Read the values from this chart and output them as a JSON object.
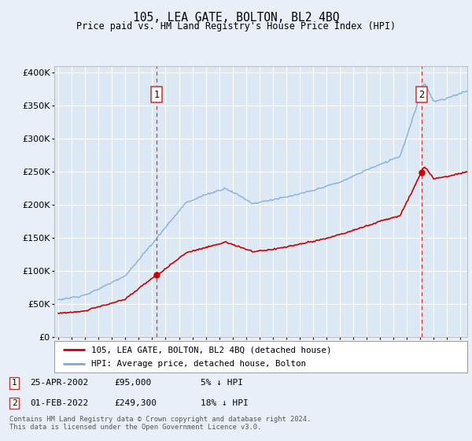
{
  "title": "105, LEA GATE, BOLTON, BL2 4BQ",
  "subtitle": "Price paid vs. HM Land Registry's House Price Index (HPI)",
  "footer": "Contains HM Land Registry data © Crown copyright and database right 2024.\nThis data is licensed under the Open Government Licence v3.0.",
  "legend_line1": "105, LEA GATE, BOLTON, BL2 4BQ (detached house)",
  "legend_line2": "HPI: Average price, detached house, Bolton",
  "annotation1_date": "25-APR-2002",
  "annotation1_price": "£95,000",
  "annotation1_hpi": "5% ↓ HPI",
  "annotation2_date": "01-FEB-2022",
  "annotation2_price": "£249,300",
  "annotation2_hpi": "18% ↓ HPI",
  "sale1_x": 2002.32,
  "sale1_y": 95000,
  "sale2_x": 2022.08,
  "sale2_y": 249300,
  "ylim": [
    0,
    410000
  ],
  "xlim": [
    1994.7,
    2025.5
  ],
  "background_color": "#e8eff8",
  "plot_bg": "#dce8f4",
  "grid_color": "#ffffff",
  "red_line_color": "#cc0000",
  "blue_line_color": "#7aaadd",
  "vline_color": "#dd3333",
  "marker_color": "#cc0000"
}
